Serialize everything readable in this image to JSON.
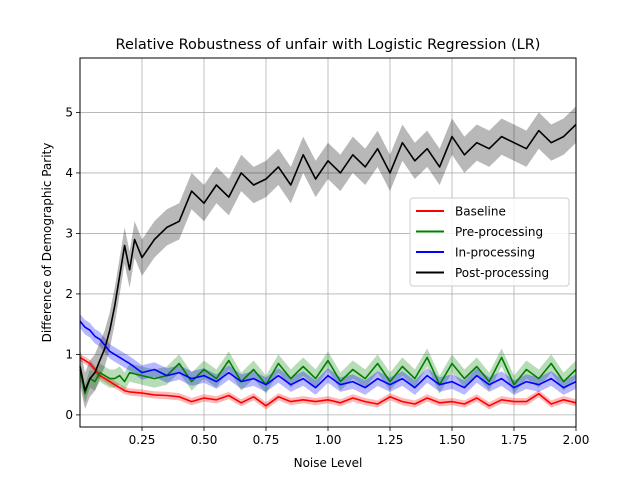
{
  "chart_data": {
    "type": "line",
    "title": "Relative Robustness of unfair with Logistic Regression (LR)",
    "xlabel": "Noise Level",
    "ylabel": "Difference of Demographic Parity",
    "xlim": [
      0.0,
      2.0
    ],
    "ylim": [
      -0.2,
      5.9
    ],
    "xticks": [
      0.25,
      0.5,
      0.75,
      1.0,
      1.25,
      1.5,
      1.75,
      2.0
    ],
    "xtick_labels": [
      "0.25",
      "0.50",
      "0.75",
      "1.00",
      "1.25",
      "1.50",
      "1.75",
      "2.00"
    ],
    "yticks": [
      0,
      1,
      2,
      3,
      4,
      5
    ],
    "ytick_labels": [
      "0",
      "1",
      "2",
      "3",
      "4",
      "5"
    ],
    "grid": true,
    "legend_position": "center-right",
    "series": [
      {
        "name": "Baseline",
        "color": "#ff0000",
        "band": 0.06,
        "x": [
          0.0,
          0.02,
          0.04,
          0.06,
          0.08,
          0.1,
          0.12,
          0.14,
          0.16,
          0.18,
          0.2,
          0.25,
          0.3,
          0.35,
          0.4,
          0.45,
          0.5,
          0.55,
          0.6,
          0.65,
          0.7,
          0.75,
          0.8,
          0.85,
          0.9,
          0.95,
          1.0,
          1.05,
          1.1,
          1.15,
          1.2,
          1.25,
          1.3,
          1.35,
          1.4,
          1.45,
          1.5,
          1.55,
          1.6,
          1.65,
          1.7,
          1.75,
          1.8,
          1.85,
          1.9,
          1.95,
          2.0
        ],
        "y": [
          0.95,
          0.9,
          0.85,
          0.75,
          0.65,
          0.6,
          0.55,
          0.5,
          0.45,
          0.4,
          0.38,
          0.36,
          0.33,
          0.32,
          0.3,
          0.22,
          0.28,
          0.25,
          0.32,
          0.2,
          0.3,
          0.15,
          0.3,
          0.22,
          0.25,
          0.22,
          0.25,
          0.2,
          0.28,
          0.22,
          0.18,
          0.3,
          0.22,
          0.18,
          0.28,
          0.2,
          0.22,
          0.18,
          0.28,
          0.15,
          0.25,
          0.22,
          0.22,
          0.35,
          0.18,
          0.25,
          0.2
        ]
      },
      {
        "name": "Pre-processing",
        "color": "#008000",
        "band": 0.15,
        "x": [
          0.0,
          0.02,
          0.04,
          0.06,
          0.08,
          0.1,
          0.12,
          0.14,
          0.16,
          0.18,
          0.2,
          0.25,
          0.3,
          0.35,
          0.4,
          0.45,
          0.5,
          0.55,
          0.6,
          0.65,
          0.7,
          0.75,
          0.8,
          0.85,
          0.9,
          0.95,
          1.0,
          1.05,
          1.1,
          1.15,
          1.2,
          1.25,
          1.3,
          1.35,
          1.4,
          1.45,
          1.5,
          1.55,
          1.6,
          1.65,
          1.7,
          1.75,
          1.8,
          1.85,
          1.9,
          1.95,
          2.0
        ],
        "y": [
          0.75,
          0.35,
          0.6,
          0.55,
          0.7,
          0.65,
          0.6,
          0.6,
          0.65,
          0.55,
          0.7,
          0.65,
          0.6,
          0.65,
          0.85,
          0.55,
          0.75,
          0.6,
          0.9,
          0.55,
          0.75,
          0.5,
          0.85,
          0.6,
          0.8,
          0.6,
          0.9,
          0.55,
          0.75,
          0.6,
          0.85,
          0.55,
          0.8,
          0.6,
          0.95,
          0.5,
          0.85,
          0.6,
          0.8,
          0.55,
          0.95,
          0.5,
          0.75,
          0.6,
          0.85,
          0.55,
          0.75
        ]
      },
      {
        "name": "In-processing",
        "color": "#0000ff",
        "band": 0.12,
        "x": [
          0.0,
          0.02,
          0.04,
          0.06,
          0.08,
          0.1,
          0.12,
          0.14,
          0.16,
          0.18,
          0.2,
          0.25,
          0.3,
          0.35,
          0.4,
          0.45,
          0.5,
          0.55,
          0.6,
          0.65,
          0.7,
          0.75,
          0.8,
          0.85,
          0.9,
          0.95,
          1.0,
          1.05,
          1.1,
          1.15,
          1.2,
          1.25,
          1.3,
          1.35,
          1.4,
          1.45,
          1.5,
          1.55,
          1.6,
          1.65,
          1.7,
          1.75,
          1.8,
          1.85,
          1.9,
          1.95,
          2.0
        ],
        "y": [
          1.55,
          1.45,
          1.4,
          1.3,
          1.25,
          1.15,
          1.05,
          1.0,
          0.95,
          0.9,
          0.85,
          0.7,
          0.75,
          0.65,
          0.7,
          0.6,
          0.65,
          0.55,
          0.7,
          0.55,
          0.6,
          0.5,
          0.65,
          0.5,
          0.6,
          0.45,
          0.65,
          0.5,
          0.55,
          0.45,
          0.6,
          0.5,
          0.6,
          0.45,
          0.65,
          0.5,
          0.55,
          0.45,
          0.65,
          0.5,
          0.6,
          0.45,
          0.55,
          0.5,
          0.6,
          0.45,
          0.55
        ]
      },
      {
        "name": "Post-processing",
        "color": "#000000",
        "band": 0.3,
        "x": [
          0.0,
          0.02,
          0.04,
          0.06,
          0.08,
          0.1,
          0.12,
          0.14,
          0.16,
          0.18,
          0.2,
          0.22,
          0.25,
          0.3,
          0.35,
          0.4,
          0.45,
          0.5,
          0.55,
          0.6,
          0.65,
          0.7,
          0.75,
          0.8,
          0.85,
          0.9,
          0.95,
          1.0,
          1.05,
          1.1,
          1.15,
          1.2,
          1.25,
          1.3,
          1.35,
          1.4,
          1.45,
          1.5,
          1.55,
          1.6,
          1.65,
          1.7,
          1.75,
          1.8,
          1.85,
          1.9,
          1.95,
          2.0
        ],
        "y": [
          0.8,
          0.4,
          0.6,
          0.7,
          0.9,
          1.1,
          1.4,
          1.8,
          2.3,
          2.8,
          2.4,
          2.9,
          2.6,
          2.9,
          3.1,
          3.2,
          3.7,
          3.5,
          3.8,
          3.6,
          4.0,
          3.8,
          3.9,
          4.1,
          3.8,
          4.3,
          3.9,
          4.2,
          4.0,
          4.3,
          4.1,
          4.4,
          4.0,
          4.5,
          4.2,
          4.4,
          4.1,
          4.6,
          4.3,
          4.5,
          4.4,
          4.6,
          4.5,
          4.4,
          4.7,
          4.5,
          4.6,
          4.8
        ]
      }
    ]
  }
}
